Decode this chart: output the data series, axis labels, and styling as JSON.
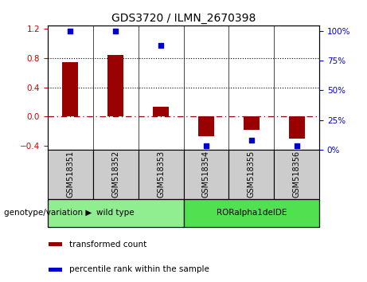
{
  "title": "GDS3720 / ILMN_2670398",
  "samples": [
    "GSM518351",
    "GSM518352",
    "GSM518353",
    "GSM518354",
    "GSM518355",
    "GSM518356"
  ],
  "transformed_count": [
    0.75,
    0.85,
    0.13,
    -0.27,
    -0.18,
    -0.3
  ],
  "percentile_rank": [
    100,
    100,
    88,
    3,
    8,
    3
  ],
  "bar_color": "#990000",
  "dot_color": "#0000cc",
  "left_ylim": [
    -0.45,
    1.25
  ],
  "right_ylim": [
    0,
    105
  ],
  "left_yticks": [
    -0.4,
    0.0,
    0.4,
    0.8,
    1.2
  ],
  "right_yticks": [
    0,
    25,
    50,
    75,
    100
  ],
  "hline_y": 0.0,
  "dotted_lines": [
    0.4,
    0.8
  ],
  "groups": [
    {
      "label": "wild type",
      "indices": [
        0,
        1,
        2
      ],
      "color": "#90ee90"
    },
    {
      "label": "RORalpha1delDE",
      "indices": [
        3,
        4,
        5
      ],
      "color": "#50e050"
    }
  ],
  "group_label": "genotype/variation",
  "legend_items": [
    {
      "label": "transformed count",
      "color": "#990000"
    },
    {
      "label": "percentile rank within the sample",
      "color": "#0000cc"
    }
  ],
  "bar_width": 0.35,
  "dot_size": 22,
  "title_fontsize": 10,
  "label_fontsize": 7.5,
  "tick_fontsize": 7.5,
  "sample_fontsize": 7,
  "right_label_color": "#0000cc",
  "left_label_color": "#cc0000",
  "gray_box_color": "#cccccc",
  "n_samples": 6
}
